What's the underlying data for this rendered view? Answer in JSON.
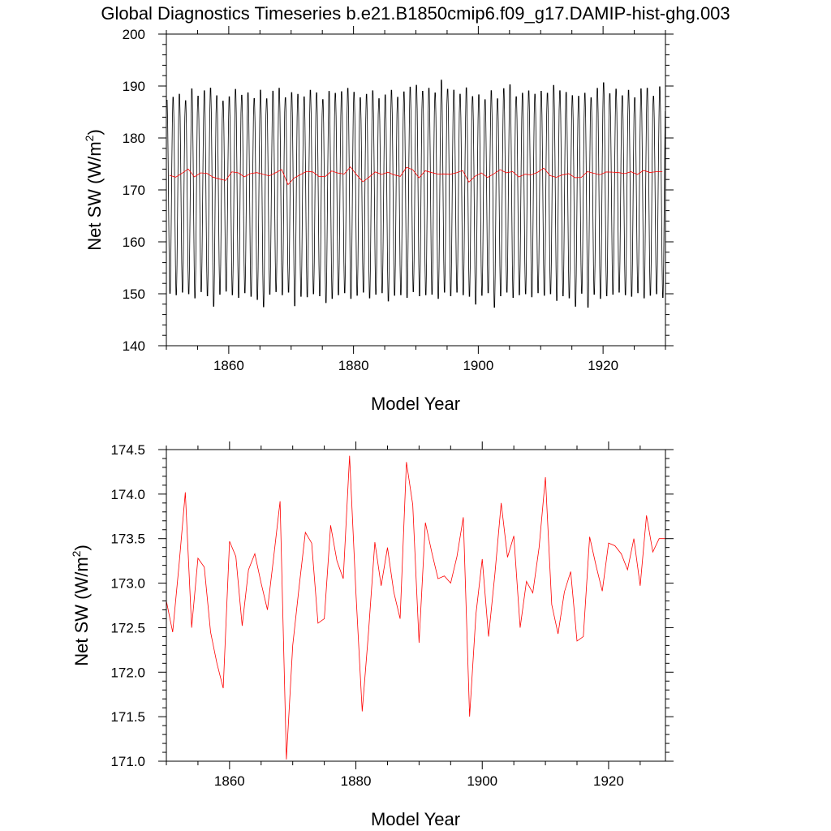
{
  "figure": {
    "title": "Global Diagnostics Timeseries b.e21.B1850cmip6.f09_g17.DAMIP-hist-ghg.003"
  },
  "chart_data": [
    {
      "type": "line",
      "xlabel": "Model Year",
      "ylabel_main": "Net SW (W/m",
      "ylabel_sup": "2",
      "ylabel_close": ")",
      "xlim": [
        1850,
        1930
      ],
      "ylim": [
        140,
        200
      ],
      "xticks": [
        "1860",
        "1880",
        "1900",
        "1920"
      ],
      "xtick_values": [
        1860,
        1880,
        1900,
        1920
      ],
      "yticks": [
        "140",
        "150",
        "160",
        "170",
        "180",
        "190",
        "200"
      ],
      "ytick_values": [
        140,
        150,
        160,
        170,
        180,
        190,
        200
      ],
      "grid": false,
      "monthly_cycle": {
        "color": "#000000",
        "start_year": 1850,
        "annual_max": [
          188.6,
          189.2,
          189.8,
          188.5,
          190.9,
          189.4,
          190.5,
          191.1,
          189.5,
          188.4,
          189.3,
          190.8,
          189.6,
          190.1,
          189.0,
          190.7,
          188.9,
          190.4,
          191.0,
          189.1,
          190.2,
          189.8,
          189.3,
          190.6,
          190.1,
          188.8,
          190.4,
          190.0,
          190.3,
          191.0,
          190.2,
          189.1,
          189.8,
          190.5,
          188.9,
          189.7,
          190.6,
          189.2,
          190.3,
          191.2,
          191.6,
          190.4,
          191.0,
          190.1,
          192.6,
          190.8,
          190.6,
          189.8,
          191.1,
          189.4,
          189.7,
          188.7,
          190.6,
          188.9,
          190.9,
          191.7,
          189.3,
          190.0,
          190.5,
          189.8,
          190.4,
          190.0,
          191.6,
          190.5,
          190.2,
          189.6,
          189.4,
          190.1,
          189.1,
          191.0,
          192.1,
          189.9,
          190.8,
          189.5,
          190.6,
          189.1,
          190.9,
          191.0,
          189.4,
          191.3
        ],
        "annual_min": [
          150.1,
          149.8,
          150.3,
          150.0,
          149.2,
          150.4,
          149.6,
          147.6,
          149.9,
          150.5,
          149.8,
          149.3,
          150.2,
          149.5,
          148.9,
          147.5,
          149.9,
          150.4,
          149.8,
          150.3,
          147.7,
          149.5,
          149.4,
          150.0,
          149.6,
          148.3,
          149.1,
          149.8,
          150.2,
          149.1,
          149.7,
          150.3,
          149.2,
          149.9,
          150.2,
          148.6,
          149.7,
          149.8,
          149.3,
          150.4,
          149.6,
          149.8,
          149.9,
          149.1,
          150.3,
          149.6,
          150.3,
          149.8,
          149.5,
          148.0,
          149.7,
          150.2,
          147.4,
          149.6,
          150.3,
          149.3,
          149.8,
          150.0,
          149.4,
          150.2,
          149.7,
          150.0,
          148.7,
          149.6,
          149.2,
          147.6,
          150.1,
          147.4,
          149.9,
          149.1,
          149.6,
          149.9,
          150.3,
          149.8,
          149.5,
          150.2,
          149.2,
          149.7,
          150.0,
          149.3
        ]
      },
      "annual_mean": {
        "color": "#ff0000",
        "x": [
          1850.5,
          1851.5,
          1852.5,
          1853.5,
          1854.5,
          1855.5,
          1856.5,
          1857.5,
          1858.5,
          1859.5,
          1860.5,
          1861.5,
          1862.5,
          1863.5,
          1864.5,
          1865.5,
          1866.5,
          1867.5,
          1868.5,
          1869.5,
          1870.5,
          1871.5,
          1872.5,
          1873.5,
          1874.5,
          1875.5,
          1876.5,
          1877.5,
          1878.5,
          1879.5,
          1880.5,
          1881.5,
          1882.5,
          1883.5,
          1884.5,
          1885.5,
          1886.5,
          1887.5,
          1888.5,
          1889.5,
          1890.5,
          1891.5,
          1892.5,
          1893.5,
          1894.5,
          1895.5,
          1896.5,
          1897.5,
          1898.5,
          1899.5,
          1900.5,
          1901.5,
          1902.5,
          1903.5,
          1904.5,
          1905.5,
          1906.5,
          1907.5,
          1908.5,
          1909.5,
          1910.5,
          1911.5,
          1912.5,
          1913.5,
          1914.5,
          1915.5,
          1916.5,
          1917.5,
          1918.5,
          1919.5,
          1920.5,
          1921.5,
          1922.5,
          1923.5,
          1924.5,
          1925.5,
          1926.5,
          1927.5,
          1928.5,
          1929.5
        ],
        "y": [
          172.8,
          172.45,
          173.2,
          174.02,
          172.5,
          173.28,
          173.18,
          172.45,
          172.1,
          171.82,
          173.47,
          173.3,
          172.52,
          173.15,
          173.33,
          173.0,
          172.7,
          173.3,
          173.92,
          171.02,
          172.3,
          172.95,
          173.57,
          173.45,
          172.55,
          172.6,
          173.65,
          173.25,
          173.05,
          174.43,
          172.9,
          171.56,
          172.45,
          173.46,
          172.97,
          173.4,
          172.9,
          172.6,
          174.36,
          173.88,
          172.33,
          173.68,
          173.35,
          173.05,
          173.08,
          173.0,
          173.3,
          173.74,
          171.5,
          172.65,
          173.27,
          172.4,
          173.1,
          173.9,
          173.29,
          173.53,
          172.5,
          173.02,
          172.89,
          173.4,
          174.19,
          172.76,
          172.43,
          172.9,
          173.13,
          172.35,
          172.4,
          173.52,
          173.2,
          172.91,
          173.45,
          173.42,
          173.33,
          173.15,
          173.5,
          172.97,
          173.76,
          173.35,
          173.5,
          173.5
        ]
      }
    },
    {
      "type": "line",
      "xlabel": "Model Year",
      "ylabel_main": "Net SW (W/m",
      "ylabel_sup": "2",
      "ylabel_close": ")",
      "xlim": [
        1850,
        1929
      ],
      "ylim": [
        171.0,
        174.5
      ],
      "xticks": [
        "1860",
        "1880",
        "1900",
        "1920"
      ],
      "xtick_values": [
        1860,
        1880,
        1900,
        1920
      ],
      "yticks": [
        "171.0",
        "171.5",
        "172.0",
        "172.5",
        "173.0",
        "173.5",
        "174.0",
        "174.5"
      ],
      "ytick_values": [
        171.0,
        171.5,
        172.0,
        172.5,
        173.0,
        173.5,
        174.0,
        174.5
      ],
      "grid": false,
      "annual_mean": {
        "color": "#ff0000",
        "x": [
          1850.0,
          1851.0,
          1852.0,
          1853.0,
          1854.0,
          1855.0,
          1856.0,
          1857.0,
          1858.0,
          1859.0,
          1860.0,
          1861.0,
          1862.0,
          1863.0,
          1864.0,
          1865.0,
          1866.0,
          1867.0,
          1868.0,
          1869.0,
          1870.0,
          1871.0,
          1872.0,
          1873.0,
          1874.0,
          1875.0,
          1876.0,
          1877.0,
          1878.0,
          1879.0,
          1880.0,
          1881.0,
          1882.0,
          1883.0,
          1884.0,
          1885.0,
          1886.0,
          1887.0,
          1888.0,
          1889.0,
          1890.0,
          1891.0,
          1892.0,
          1893.0,
          1894.0,
          1895.0,
          1896.0,
          1897.0,
          1898.0,
          1899.0,
          1900.0,
          1901.0,
          1902.0,
          1903.0,
          1904.0,
          1905.0,
          1906.0,
          1907.0,
          1908.0,
          1909.0,
          1910.0,
          1911.0,
          1912.0,
          1913.0,
          1914.0,
          1915.0,
          1916.0,
          1917.0,
          1918.0,
          1919.0,
          1920.0,
          1921.0,
          1922.0,
          1923.0,
          1924.0,
          1925.0,
          1926.0,
          1927.0,
          1928.0,
          1929.0
        ],
        "y": [
          172.8,
          172.45,
          173.2,
          174.02,
          172.5,
          173.28,
          173.18,
          172.45,
          172.1,
          171.82,
          173.47,
          173.3,
          172.52,
          173.15,
          173.33,
          173.0,
          172.7,
          173.3,
          173.92,
          171.02,
          172.3,
          172.95,
          173.57,
          173.45,
          172.55,
          172.6,
          173.65,
          173.25,
          173.05,
          174.43,
          172.9,
          171.56,
          172.45,
          173.46,
          172.97,
          173.4,
          172.9,
          172.6,
          174.36,
          173.88,
          172.33,
          173.68,
          173.35,
          173.05,
          173.08,
          173.0,
          173.3,
          173.74,
          171.5,
          172.65,
          173.27,
          172.4,
          173.1,
          173.9,
          173.29,
          173.53,
          172.5,
          173.02,
          172.89,
          173.4,
          174.19,
          172.76,
          172.43,
          172.9,
          173.13,
          172.35,
          172.4,
          173.52,
          173.2,
          172.91,
          173.45,
          173.42,
          173.33,
          173.15,
          173.5,
          172.97,
          173.76,
          173.35,
          173.5,
          173.5
        ]
      }
    }
  ]
}
